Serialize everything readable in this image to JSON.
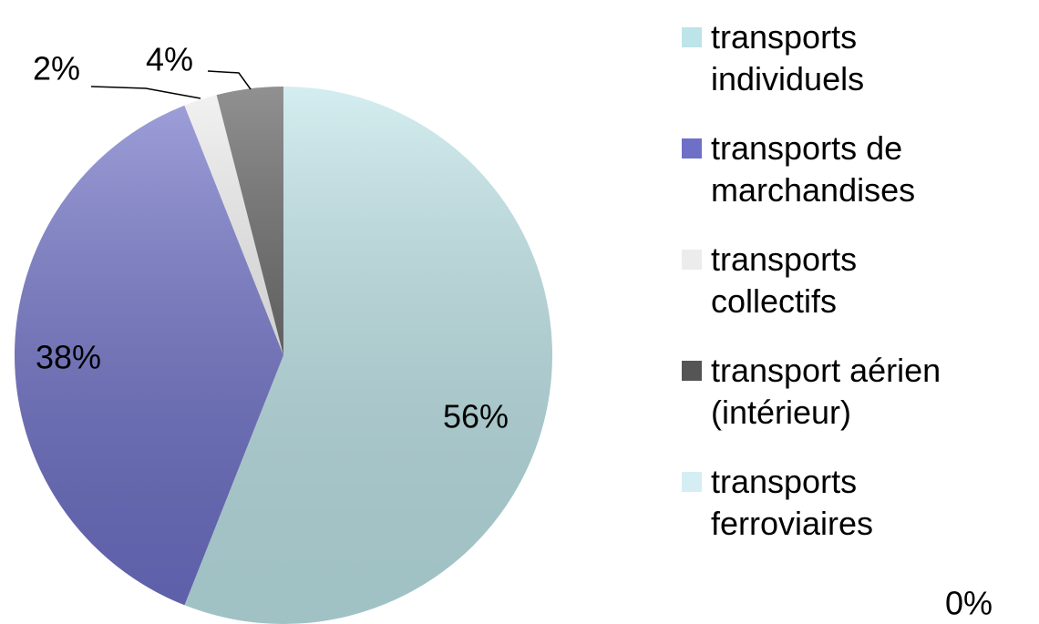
{
  "chart_data": {
    "type": "pie",
    "categories": [
      "transports individuels",
      "transports de marchandises",
      "transports collectifs",
      "transport aérien (intérieur)",
      "transports ferroviaires"
    ],
    "values": [
      56,
      38,
      2,
      4,
      0
    ],
    "value_labels": [
      "56%",
      "38%",
      "2%",
      "4%",
      "0%"
    ],
    "colors": [
      "#bde4e8",
      "#6e70c8",
      "#ececec",
      "#555555",
      "#d4eef3"
    ],
    "legend": "right"
  }
}
